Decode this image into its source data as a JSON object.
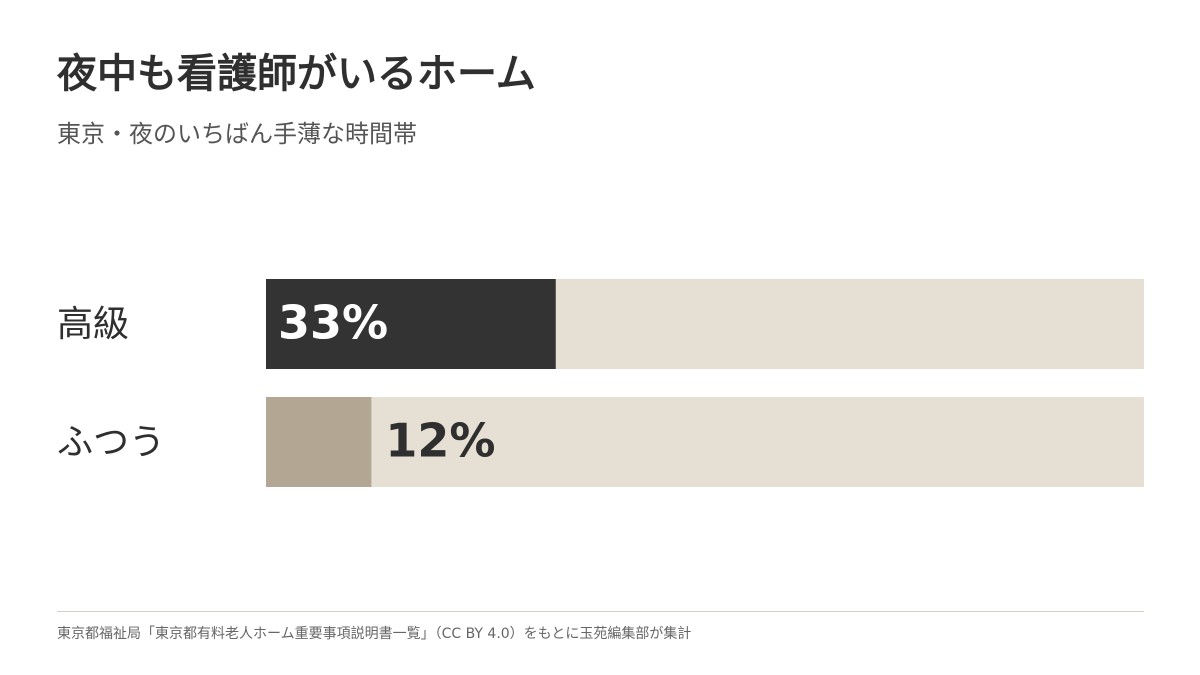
{
  "chart_data": {
    "type": "bar",
    "orientation": "horizontal",
    "title": "夜中も看護師がいるホーム",
    "subtitle": "東京・夜のいちばん手薄な時間帯",
    "categories": [
      "高級",
      "ふつう"
    ],
    "values": [
      33,
      12
    ],
    "value_labels": [
      "33%",
      "12%"
    ],
    "colors": [
      "#333333",
      "#b3a794"
    ],
    "track_color": "#e6dfd4",
    "xlim": [
      0,
      100
    ],
    "source": "東京都福祉局「東京都有料老人ホーム重要事項説明書一覧」（CC BY 4.0）をもとに玉苑編集部が集計"
  }
}
